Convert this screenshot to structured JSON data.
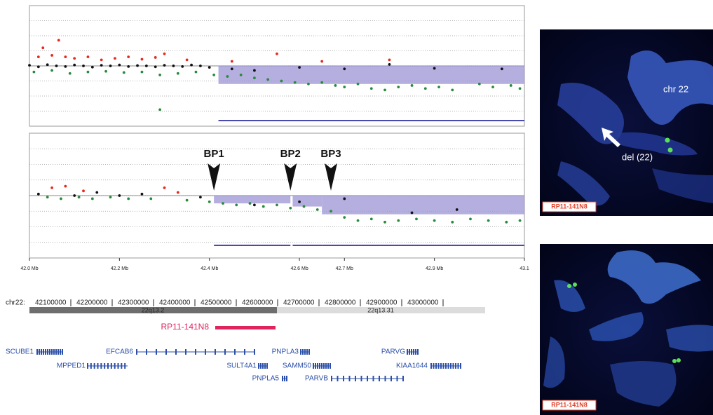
{
  "chart_data": [
    {
      "type": "scatter",
      "xlim": [
        42.0,
        43.1
      ],
      "ylim": [
        -2,
        2
      ],
      "series": [
        {
          "color": "#e8281e",
          "x": [
            42.02,
            42.03,
            42.05,
            42.065,
            42.08,
            42.1,
            42.13,
            42.16,
            42.19,
            42.22,
            42.25,
            42.28,
            42.3,
            42.35,
            42.45,
            42.55,
            42.65,
            42.8
          ],
          "values": [
            0.3,
            0.6,
            0.35,
            0.85,
            0.3,
            0.25,
            0.3,
            0.2,
            0.25,
            0.3,
            0.22,
            0.28,
            0.4,
            0.2,
            0.15,
            0.4,
            0.15,
            0.2
          ]
        },
        {
          "color": "#111111",
          "x": [
            42.0,
            42.02,
            42.04,
            42.06,
            42.08,
            42.1,
            42.12,
            42.14,
            42.16,
            42.18,
            42.2,
            42.22,
            42.24,
            42.26,
            42.28,
            42.3,
            42.32,
            42.34,
            42.36,
            42.38,
            42.4,
            42.45,
            42.5,
            42.6,
            42.7,
            42.8,
            42.9,
            43.05
          ],
          "values": [
            0.02,
            -0.03,
            0.04,
            0.0,
            -0.02,
            0.03,
            0.0,
            -0.04,
            0.02,
            0.0,
            0.03,
            -0.02,
            0.01,
            0.0,
            -0.03,
            0.02,
            0.0,
            -0.02,
            0.03,
            0.0,
            -0.05,
            -0.1,
            -0.15,
            -0.05,
            -0.1,
            0.05,
            -0.08,
            -0.1
          ]
        },
        {
          "color": "#2a8a3c",
          "x": [
            42.01,
            42.05,
            42.09,
            42.13,
            42.17,
            42.21,
            42.25,
            42.29,
            42.33,
            42.37,
            42.41,
            42.44,
            42.47,
            42.5,
            42.53,
            42.56,
            42.59,
            42.62,
            42.65,
            42.68,
            42.7,
            42.73,
            42.76,
            42.79,
            42.82,
            42.85,
            42.88,
            42.91,
            42.94,
            43.0,
            43.03,
            43.07,
            43.09,
            42.29
          ],
          "values": [
            -0.2,
            -0.15,
            -0.25,
            -0.2,
            -0.18,
            -0.22,
            -0.2,
            -0.3,
            -0.25,
            -0.2,
            -0.3,
            -0.35,
            -0.3,
            -0.4,
            -0.45,
            -0.5,
            -0.55,
            -0.6,
            -0.55,
            -0.65,
            -0.7,
            -0.6,
            -0.75,
            -0.8,
            -0.7,
            -0.65,
            -0.75,
            -0.7,
            -0.8,
            -0.6,
            -0.7,
            -0.65,
            -0.75,
            -1.45
          ]
        }
      ],
      "segments": [
        {
          "start": 42.42,
          "end": 43.1,
          "value": -0.6
        }
      ]
    },
    {
      "type": "scatter",
      "xlim": [
        42.0,
        43.1
      ],
      "ylim": [
        -2,
        2
      ],
      "series": [
        {
          "color": "#e8281e",
          "x": [
            42.05,
            42.08,
            42.12,
            42.3,
            42.33
          ],
          "values": [
            0.25,
            0.3,
            0.15,
            0.25,
            0.1
          ]
        },
        {
          "color": "#111111",
          "x": [
            42.02,
            42.1,
            42.15,
            42.2,
            42.25,
            42.38,
            42.5,
            42.6,
            42.7,
            42.85,
            42.95
          ],
          "values": [
            0.05,
            0.0,
            0.1,
            0.0,
            0.05,
            -0.05,
            -0.3,
            -0.2,
            -0.1,
            -0.55,
            -0.45
          ]
        },
        {
          "color": "#2a8a3c",
          "x": [
            42.04,
            42.07,
            42.11,
            42.14,
            42.18,
            42.22,
            42.27,
            42.35,
            42.4,
            42.43,
            42.46,
            42.49,
            42.52,
            42.55,
            42.58,
            42.61,
            42.64,
            42.67,
            42.7,
            42.73,
            42.76,
            42.79,
            42.82,
            42.86,
            42.9,
            42.94,
            42.98,
            43.02,
            43.06,
            43.09
          ],
          "values": [
            -0.05,
            -0.1,
            -0.05,
            -0.1,
            -0.05,
            -0.1,
            -0.1,
            -0.15,
            -0.2,
            -0.25,
            -0.3,
            -0.25,
            -0.35,
            -0.3,
            -0.4,
            -0.35,
            -0.45,
            -0.5,
            -0.7,
            -0.8,
            -0.75,
            -0.85,
            -0.8,
            -0.75,
            -0.8,
            -0.85,
            -0.75,
            -0.8,
            -0.85,
            -0.8
          ]
        }
      ],
      "segments": [
        {
          "start": 42.41,
          "end": 42.58,
          "value": -0.25
        },
        {
          "start": 42.585,
          "end": 42.65,
          "value": -0.35
        },
        {
          "start": 42.65,
          "end": 43.1,
          "value": -0.6
        }
      ],
      "breakpoints": [
        {
          "label": "BP1",
          "x": 42.41
        },
        {
          "label": "BP2",
          "x": 42.58
        },
        {
          "label": "BP3",
          "x": 42.67
        }
      ],
      "xticks": [
        {
          "value": 42.0,
          "label": "42.0 Mb"
        },
        {
          "value": 42.2,
          "label": "42.2 Mb"
        },
        {
          "value": 42.4,
          "label": "42.4 Mb"
        },
        {
          "value": 42.6,
          "label": "42.6 Mb"
        },
        {
          "value": 42.7,
          "label": "42.7 Mb"
        },
        {
          "value": 42.9,
          "label": "42.9 Mb"
        },
        43.1
      ]
    }
  ],
  "ideogram": {
    "chrom": "chr22:",
    "coordinates": [
      42100000,
      42200000,
      42300000,
      42400000,
      42500000,
      42600000,
      42700000,
      42800000,
      42900000,
      43000000
    ],
    "bands": [
      "22q13.2",
      "22q13.31"
    ],
    "probe": "RP11-141N8",
    "genes": [
      "SCUBE1",
      "EFCAB6",
      "PNPLA3",
      "PARVG",
      "MPPED1",
      "SULT4A1",
      "SAMM50",
      "KIAA1644",
      "PNPLA5",
      "PARVB"
    ]
  },
  "fish": [
    {
      "labels": [
        "chr 22",
        "del (22)"
      ],
      "probe": "RP11-141N8"
    },
    {
      "probe": "RP11-141N8"
    }
  ]
}
